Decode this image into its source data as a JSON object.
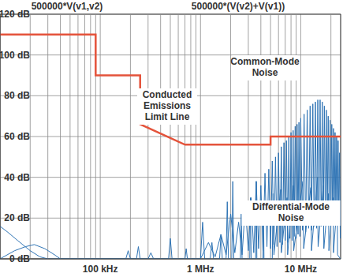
{
  "chart_data": {
    "type": "line",
    "log": "x",
    "grid": true,
    "xlim": [
      10000,
      25000000
    ],
    "xticks": [
      {
        "value": 100000,
        "label": "100 kHz"
      },
      {
        "value": 1000000,
        "label": "1 MHz"
      },
      {
        "value": 10000000,
        "label": "10 MHz"
      }
    ],
    "ylim": [
      0,
      120
    ],
    "yticks": [
      {
        "value": 0,
        "label": "0 dB"
      },
      {
        "value": 20,
        "label": "20 dB"
      },
      {
        "value": 40,
        "label": "40 dB"
      },
      {
        "value": 60,
        "label": "60 dB"
      },
      {
        "value": 80,
        "label": "80 dB"
      },
      {
        "value": 100,
        "label": "100 dB"
      },
      {
        "value": 120,
        "label": "120 dB"
      }
    ],
    "annotations": [
      {
        "text": "Conducted\nEmissions\nLimit Line"
      },
      {
        "text": "Common-Mode\nNoise"
      },
      {
        "text": "Differential-Mode\nNoise"
      }
    ],
    "series": [
      {
        "name": "500000*V(v1,v2)",
        "color": "#2f74b5",
        "x": [
          10000,
          12000,
          15000,
          20000,
          25000,
          30000,
          180000,
          190000,
          200000,
          230000,
          240000,
          250000,
          300000,
          320000,
          340000,
          480000,
          500000,
          520000,
          700000,
          720000,
          740000,
          1000000,
          1050000,
          1100000,
          1250000,
          1300000,
          1350000,
          1550000,
          1600000,
          1650000,
          1800000,
          1850000,
          1900000,
          2050000,
          2100000,
          2150000,
          2500000,
          2550000,
          2600000,
          3100000,
          3150000,
          3200000,
          3550000,
          3600000,
          3650000,
          4200000,
          4250000,
          4300000,
          5200000,
          5300000,
          5400000,
          6300000,
          6400000,
          7300000,
          7400000,
          8400000,
          8500000,
          10500000,
          10700000,
          12600000,
          12800000,
          14700000,
          14900000,
          16800000,
          17000000,
          18900000,
          19100000,
          21000000,
          21200000,
          23100000,
          23300000,
          24900000
        ],
        "values": [
          16,
          13,
          9,
          4,
          1,
          0,
          0,
          4,
          0,
          0,
          6,
          0,
          0,
          3,
          0,
          0,
          10,
          0,
          0,
          5,
          0,
          0,
          18,
          0,
          0,
          8,
          0,
          0,
          12,
          0,
          0,
          28,
          0,
          0,
          38,
          0,
          0,
          22,
          0,
          0,
          30,
          0,
          0,
          38,
          0,
          0,
          25,
          0,
          0,
          32,
          2,
          34,
          3,
          30,
          2,
          36,
          4,
          38,
          5,
          35,
          4,
          40,
          6,
          36,
          5,
          32,
          4,
          30,
          3,
          28,
          2,
          0
        ]
      },
      {
        "name": "500000*(V(v2)+V(v1))",
        "color": "#2f74b5",
        "x": [
          10000,
          14000,
          18000,
          22000,
          28000,
          35000,
          40000,
          1000000,
          1200000,
          1400000,
          1600000,
          1800000,
          2000000,
          2200000,
          2400000,
          2600000,
          2800000,
          3000000,
          3200000,
          3400000,
          3600000,
          3800000,
          4000000,
          4200000,
          4400000,
          4600000,
          4800000,
          5000000,
          5200000,
          5400000,
          5600000,
          5800000,
          6000000,
          6200000,
          6400000,
          6600000,
          6800000,
          7000000,
          7200000,
          7400000,
          7600000,
          7800000,
          8000000,
          8200000,
          8400000,
          8600000,
          8800000,
          9000000,
          9200000,
          9400000,
          9600000,
          9800000,
          10000000,
          10400000,
          10800000,
          11200000,
          11600000,
          12000000,
          12400000,
          12800000,
          13200000,
          13600000,
          14000000,
          14400000,
          14800000,
          15200000,
          15600000,
          16000000,
          16400000,
          16800000,
          17200000,
          17600000,
          18000000,
          18400000,
          18800000,
          19200000,
          19600000,
          20000000,
          20400000,
          20800000,
          21200000,
          21600000,
          22000000,
          22400000,
          22800000,
          23200000,
          23600000,
          24000000,
          24400000,
          24800000
        ],
        "values": [
          0,
          4,
          6,
          7,
          5,
          2,
          0,
          0,
          8,
          1,
          12,
          2,
          22,
          3,
          18,
          2,
          26,
          4,
          30,
          3,
          38,
          5,
          36,
          4,
          42,
          6,
          44,
          5,
          48,
          7,
          50,
          6,
          52,
          8,
          55,
          7,
          57,
          9,
          58,
          8,
          60,
          10,
          62,
          9,
          63,
          11,
          65,
          10,
          66,
          12,
          67,
          11,
          69,
          14,
          71,
          13,
          73,
          15,
          75,
          14,
          76,
          16,
          77,
          15,
          78,
          17,
          78,
          16,
          77,
          18,
          75,
          17,
          73,
          19,
          70,
          18,
          68,
          20,
          66,
          19,
          64,
          21,
          62,
          20,
          60,
          22,
          58,
          21,
          52,
          10
        ]
      },
      {
        "color": "#e4533b",
        "x": [
          10000,
          90000,
          90000,
          250000,
          250000,
          700000,
          5000000,
          5000000,
          25000000
        ],
        "values": [
          110,
          110,
          90,
          90,
          66,
          56,
          56,
          60,
          60
        ]
      }
    ]
  }
}
